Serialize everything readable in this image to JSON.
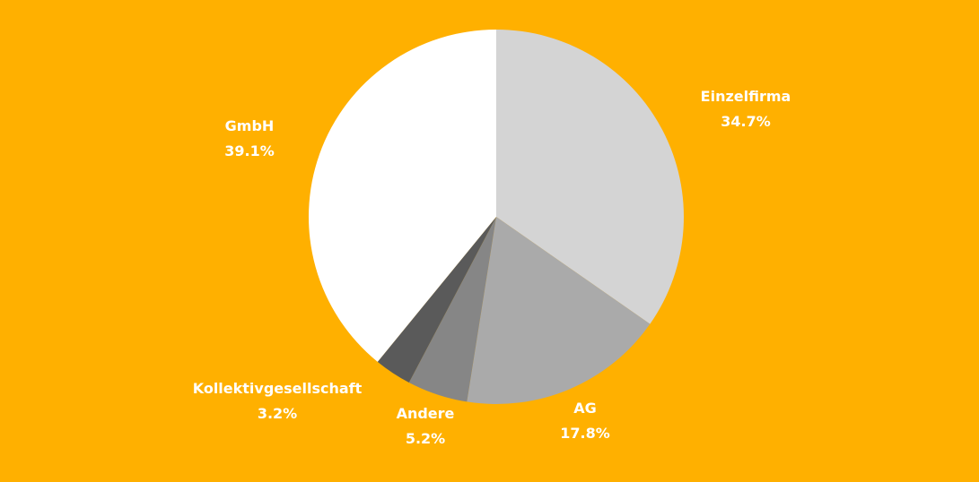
{
  "background_color": "#FFB000",
  "chart_data": {
    "type": "pie",
    "title": "",
    "slices": [
      {
        "label": "Einzelfirma",
        "value": 34.7,
        "value_label": "34.7%",
        "color": "#D4D4D4"
      },
      {
        "label": "AG",
        "value": 17.8,
        "value_label": "17.8%",
        "color": "#AAAAAA"
      },
      {
        "label": "Andere",
        "value": 5.2,
        "value_label": "5.2%",
        "color": "#868686"
      },
      {
        "label": "Kollektivgesellschaft",
        "value": 3.2,
        "value_label": "3.2%",
        "color": "#5A5A5A"
      },
      {
        "label": "GmbH",
        "value": 39.1,
        "value_label": "39.1%",
        "color": "#FFFFFF"
      }
    ],
    "start": "12 o'clock",
    "direction": "clockwise",
    "legend": "none",
    "labels": "outside"
  }
}
